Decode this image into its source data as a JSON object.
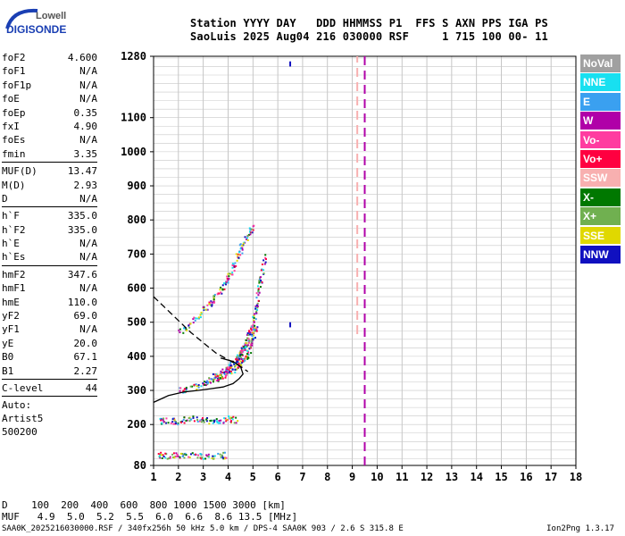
{
  "logo": {
    "line1": "Lowell",
    "line2": "DIGISONDE"
  },
  "header": {
    "line1": "Station YYYY DAY   DDD HHMMSS P1  FFS S AXN PPS IGA PS",
    "line2": "SaoLuis 2025 Aug04 216 030000 RSF     1 715 100 00- 11"
  },
  "params": [
    {
      "name": "foF2",
      "value": "4.600"
    },
    {
      "name": "foF1",
      "value": "N/A"
    },
    {
      "name": "foF1p",
      "value": "N/A"
    },
    {
      "name": "foE",
      "value": "N/A"
    },
    {
      "name": "foEp",
      "value": "0.35"
    },
    {
      "name": "fxI",
      "value": "4.90"
    },
    {
      "name": "foEs",
      "value": "N/A"
    },
    {
      "name": "fmin",
      "value": "3.35"
    },
    {
      "sep": true
    },
    {
      "name": "MUF(D)",
      "value": "13.47"
    },
    {
      "name": "M(D)",
      "value": "2.93"
    },
    {
      "name": "D",
      "value": "N/A"
    },
    {
      "sep": true
    },
    {
      "name": "h`F",
      "value": "335.0"
    },
    {
      "name": "h`F2",
      "value": "335.0"
    },
    {
      "name": "h`E",
      "value": "N/A"
    },
    {
      "name": "h`Es",
      "value": "N/A"
    },
    {
      "sep": true
    },
    {
      "name": "hmF2",
      "value": "347.6"
    },
    {
      "name": "hmF1",
      "value": "N/A"
    },
    {
      "name": "hmE",
      "value": "110.0"
    },
    {
      "name": "yF2",
      "value": "69.0"
    },
    {
      "name": "yF1",
      "value": "N/A"
    },
    {
      "name": "yE",
      "value": "20.0"
    },
    {
      "name": "B0",
      "value": "67.1"
    },
    {
      "name": "B1",
      "value": "2.27"
    },
    {
      "sep": true
    },
    {
      "name": "C-level",
      "value": "44"
    },
    {
      "sep": true
    },
    {
      "free": "Auto:"
    },
    {
      "free": "Artist5"
    },
    {
      "free": "500200"
    }
  ],
  "legend": [
    {
      "label": "NoVal",
      "color": "#a0a0a0"
    },
    {
      "label": "NNE",
      "color": "#18e0f0"
    },
    {
      "label": "E",
      "color": "#3aa0f0"
    },
    {
      "label": "W",
      "color": "#b000a8"
    },
    {
      "label": "Vo-",
      "color": "#ff3ca0"
    },
    {
      "label": "Vo+",
      "color": "#ff0040"
    },
    {
      "label": "SSW",
      "color": "#f8b0b0"
    },
    {
      "label": "X-",
      "color": "#007800"
    },
    {
      "label": "X+",
      "color": "#70b050"
    },
    {
      "label": "SSE",
      "color": "#e0d800"
    },
    {
      "label": "NNW",
      "color": "#1010c0"
    }
  ],
  "bottom": {
    "row1": "D    100  200  400  600  800 1000 1500 3000 [km]",
    "row2": "MUF   4.9  5.0  5.2  5.5  6.0  6.6  8.6 13.5 [MHz]",
    "footer": "SAA0K_2025216030000.RSF / 340fx256h 50 kHz 5.0 km / DPS-4 SAA0K 903 / 2.6 S 315.8 E",
    "version": "Ion2Png 1.3.17"
  },
  "chart_data": {
    "type": "scatter",
    "xlabel": "",
    "ylabel": "",
    "xlim": [
      1,
      18
    ],
    "ylim": [
      80,
      1280
    ],
    "x_ticks": [
      1,
      2,
      3,
      4,
      5,
      6,
      7,
      8,
      9,
      10,
      11,
      12,
      13,
      14,
      15,
      16,
      17,
      18
    ],
    "y_ticks": [
      80,
      200,
      300,
      400,
      500,
      600,
      700,
      800,
      900,
      1000,
      1100,
      1280
    ],
    "grid": true,
    "traces": [
      {
        "name": "F2 trace (O)",
        "x": [
          2.0,
          2.5,
          3.0,
          3.3,
          3.6,
          3.9,
          4.1,
          4.3,
          4.4,
          4.5,
          4.6,
          4.7,
          4.8,
          4.9,
          5.0,
          5.1,
          5.2,
          5.3,
          5.5
        ],
        "y": [
          300,
          310,
          325,
          335,
          350,
          365,
          375,
          390,
          400,
          410,
          425,
          440,
          460,
          480,
          510,
          545,
          590,
          630,
          700
        ]
      },
      {
        "name": "F2 trace (X)",
        "x": [
          3.3,
          3.6,
          3.9,
          4.2,
          4.5,
          4.7,
          4.9,
          5.0,
          5.1
        ],
        "y": [
          330,
          340,
          350,
          365,
          380,
          400,
          430,
          460,
          490
        ]
      },
      {
        "name": "F2 multihop",
        "x": [
          2.0,
          2.5,
          3.0,
          3.3,
          3.6,
          3.9,
          4.1,
          4.3,
          4.5,
          4.8,
          5.0
        ],
        "y": [
          470,
          500,
          540,
          560,
          590,
          620,
          650,
          680,
          720,
          760,
          790
        ]
      },
      {
        "name": "Es / low echoes",
        "x": [
          1.2,
          1.5,
          2.0,
          2.5,
          3.0,
          3.5,
          4.0,
          4.3
        ],
        "y": [
          210,
          215,
          210,
          220,
          215,
          212,
          218,
          214
        ]
      },
      {
        "name": "E layer echoes",
        "x": [
          1.2,
          1.5,
          2.0,
          2.5,
          3.0,
          3.5,
          4.0
        ],
        "y": [
          112,
          110,
          110,
          112,
          108,
          110,
          112
        ]
      }
    ],
    "profile_solid": {
      "x": [
        1.0,
        1.6,
        2.2,
        2.8,
        3.3,
        3.8,
        4.2,
        4.45,
        4.6,
        4.5,
        4.2,
        3.7
      ],
      "y": [
        265,
        285,
        295,
        300,
        305,
        310,
        320,
        335,
        348,
        370,
        385,
        395
      ]
    },
    "profile_dashed": {
      "x": [
        1.0,
        1.5,
        2.0,
        2.5,
        3.0,
        3.5,
        4.0,
        4.5,
        4.8
      ],
      "y": [
        575,
        540,
        505,
        470,
        440,
        410,
        390,
        370,
        355
      ]
    },
    "interference": [
      {
        "x": 6.5,
        "y": [
          1250,
          1265
        ]
      },
      {
        "x": 6.5,
        "y": [
          485,
          500
        ]
      },
      {
        "x": 9.2,
        "y": [
          465,
          1280
        ]
      },
      {
        "x": 9.5,
        "y": [
          80,
          1280
        ]
      }
    ]
  }
}
